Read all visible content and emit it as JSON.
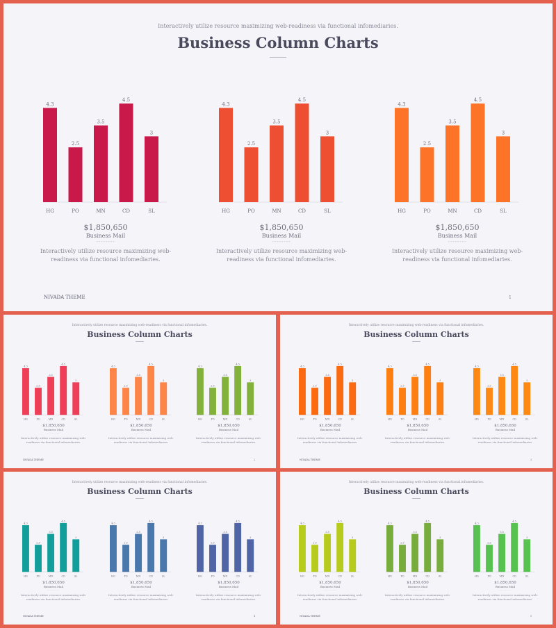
{
  "slides": [
    {
      "subtitle": "Interactively utilize resource maximizing web-readiness via functional infomediaries.",
      "title": "Business Column Charts",
      "footer": "NIVADA THEME",
      "page": "1",
      "colors": [
        "#c8194a",
        "#ee4f33",
        "#fd7428"
      ]
    },
    {
      "subtitle": "Interactively utilize resource maximizing web-readiness via functional infomediaries.",
      "title": "Business Column Charts",
      "footer": "NIVADA THEME",
      "page": "2",
      "colors": [
        "#ee3e58",
        "#fd8548",
        "#82b23c"
      ]
    },
    {
      "subtitle": "Interactively utilize resource maximizing web-readiness via functional infomediaries.",
      "title": "Business Column Charts",
      "footer": "NIVADA THEME",
      "page": "3",
      "colors": [
        "#fb6a10",
        "#fd7f12",
        "#fd8814"
      ]
    },
    {
      "subtitle": "Interactively utilize resource maximizing web-readiness via functional infomediaries.",
      "title": "Business Column Charts",
      "footer": "NIVADA THEME",
      "page": "4",
      "colors": [
        "#129e9a",
        "#4978ad",
        "#4f65a5"
      ]
    },
    {
      "subtitle": "Interactively utilize resource maximizing web-readiness via functional infomediaries.",
      "title": "Business Column Charts",
      "footer": "NIVADA THEME",
      "page": "5",
      "colors": [
        "#b7cb1c",
        "#78ad3e",
        "#58c250"
      ]
    }
  ],
  "caption": {
    "price": "$1,850,650",
    "name": "Business Mail",
    "dash": "--------",
    "desc_line1": "Interactively utilize resource maximizing web-",
    "desc_line2": "readiness via functional infomediaries."
  },
  "chart_data": {
    "type": "bar",
    "categories": [
      "HG",
      "PO",
      "MN",
      "CD",
      "SL"
    ],
    "values": [
      4.3,
      2.5,
      3.5,
      4.5,
      3
    ],
    "labels": [
      "4.3",
      "2.5",
      "3.5",
      "4.5",
      "3"
    ],
    "ylim": [
      0,
      4.5
    ],
    "grid": false,
    "legend": "none"
  }
}
